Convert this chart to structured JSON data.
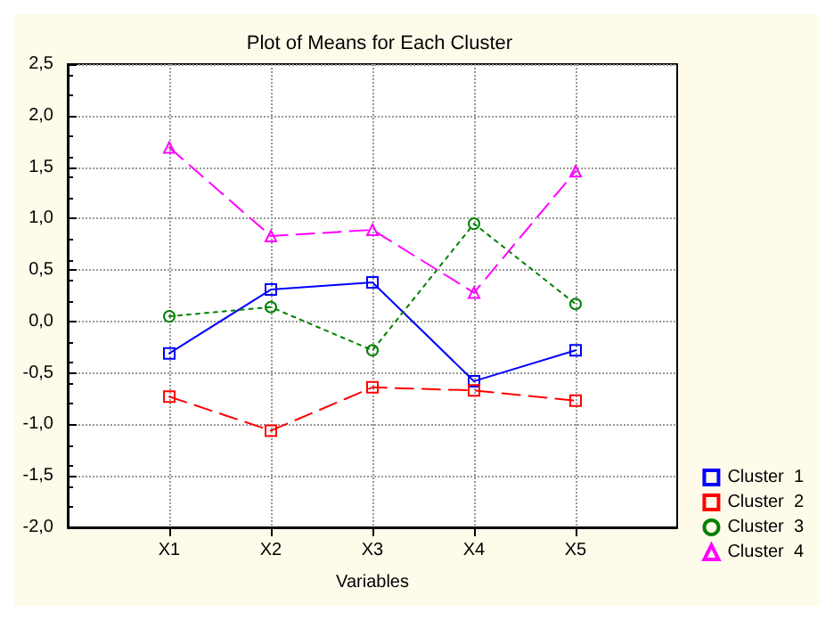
{
  "chart_data": {
    "type": "line",
    "title": "Plot of Means for Each Cluster",
    "xlabel": "Variables",
    "categories": [
      "X1",
      "X2",
      "X3",
      "X4",
      "X5"
    ],
    "series": [
      {
        "name": "Cluster  1",
        "color": "#0000ff",
        "marker": "square",
        "line_style": "solid",
        "values": [
          -0.31,
          0.31,
          0.38,
          -0.58,
          -0.28
        ]
      },
      {
        "name": "Cluster  2",
        "color": "#ff0000",
        "marker": "square",
        "line_style": "dashed",
        "values": [
          -0.73,
          -1.06,
          -0.64,
          -0.67,
          -0.77
        ]
      },
      {
        "name": "Cluster  3",
        "color": "#008000",
        "marker": "circle",
        "line_style": "dotted",
        "values": [
          0.05,
          0.14,
          -0.28,
          0.95,
          0.17
        ]
      },
      {
        "name": "Cluster  4",
        "color": "#ff00ff",
        "marker": "triangle",
        "line_style": "dashed",
        "values": [
          1.69,
          0.83,
          0.89,
          0.28,
          1.46
        ]
      }
    ],
    "ylim": [
      -2,
      2.5
    ],
    "yticks": [
      {
        "value": -2,
        "label": "-2,0"
      },
      {
        "value": -1.5,
        "label": "-1,5"
      },
      {
        "value": -1,
        "label": "-1,0"
      },
      {
        "value": -0.5,
        "label": "-0,5"
      },
      {
        "value": 0,
        "label": "0,0"
      },
      {
        "value": 0.5,
        "label": "0,5"
      },
      {
        "value": 1,
        "label": "1,0"
      },
      {
        "value": 1.5,
        "label": "1,5"
      },
      {
        "value": 2,
        "label": "2,0"
      },
      {
        "value": 2.5,
        "label": "2,5"
      }
    ],
    "grid": true,
    "legend": "bottom right"
  }
}
